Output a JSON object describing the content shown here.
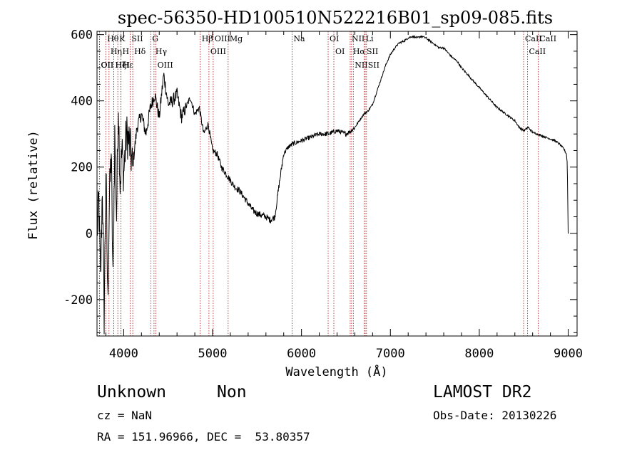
{
  "chart_data": {
    "type": "line",
    "title": "spec-56350-HD100510N522216B01_sp09-085.fits",
    "xlabel": "Wavelength (Å)",
    "ylabel": "Flux (relative)",
    "xlim": [
      3700,
      9100
    ],
    "ylim": [
      -310,
      610
    ],
    "xticks": [
      4000,
      5000,
      6000,
      7000,
      8000,
      9000
    ],
    "yticks": [
      -200,
      0,
      200,
      400,
      600
    ],
    "grid": false,
    "series": [
      {
        "x": [
          3700,
          3720,
          3740,
          3760,
          3780,
          3800,
          3820,
          3840,
          3860,
          3880,
          3900,
          3920,
          3940,
          3960,
          3980,
          4000,
          4030,
          4060,
          4100,
          4150,
          4200,
          4250,
          4300,
          4350,
          4400,
          4450,
          4500,
          4550,
          4600,
          4650,
          4700,
          4750,
          4800,
          4850,
          4900,
          4950,
          5000,
          5050,
          5100,
          5150,
          5200,
          5250,
          5300,
          5350,
          5400,
          5450,
          5500,
          5550,
          5600,
          5650,
          5700,
          5750,
          5800,
          5850,
          5900,
          5950,
          6000,
          6100,
          6200,
          6300,
          6400,
          6500,
          6560,
          6600,
          6650,
          6700,
          6750,
          6800,
          6850,
          6900,
          6950,
          7000,
          7050,
          7100,
          7150,
          7200,
          7250,
          7300,
          7350,
          7400,
          7450,
          7500,
          7550,
          7600,
          7650,
          7700,
          7750,
          7800,
          7850,
          7900,
          7950,
          8000,
          8050,
          8100,
          8150,
          8200,
          8250,
          8300,
          8350,
          8400,
          8450,
          8500,
          8550,
          8600,
          8650,
          8700,
          8750,
          8800,
          8850,
          8900,
          8950,
          8980,
          8990,
          9000
        ],
        "y": [
          0,
          100,
          -150,
          150,
          -250,
          200,
          -200,
          100,
          250,
          -150,
          300,
          50,
          400,
          150,
          250,
          180,
          300,
          280,
          200,
          320,
          360,
          300,
          380,
          420,
          350,
          480,
          390,
          400,
          420,
          350,
          380,
          410,
          360,
          380,
          300,
          330,
          250,
          240,
          200,
          180,
          160,
          140,
          130,
          110,
          90,
          70,
          60,
          55,
          50,
          40,
          50,
          150,
          240,
          260,
          270,
          275,
          280,
          290,
          300,
          300,
          310,
          300,
          310,
          320,
          340,
          360,
          370,
          390,
          430,
          470,
          510,
          540,
          560,
          575,
          580,
          590,
          595,
          590,
          595,
          590,
          580,
          570,
          560,
          560,
          545,
          530,
          520,
          500,
          485,
          470,
          455,
          440,
          425,
          410,
          395,
          380,
          370,
          360,
          350,
          340,
          320,
          310,
          320,
          305,
          300,
          295,
          290,
          285,
          280,
          270,
          255,
          240,
          210,
          0
        ]
      }
    ],
    "lines": [
      {
        "label": "Hθ",
        "wave": 3798
      },
      {
        "label": "Hη",
        "wave": 3835
      },
      {
        "label": "OII",
        "wave": 3727
      },
      {
        "label": "OII",
        "wave": 3729
      },
      {
        "label": "HeI",
        "wave": 3889
      },
      {
        "label": "Hζ",
        "wave": 3889
      },
      {
        "label": "K",
        "wave": 3934
      },
      {
        "label": "H",
        "wave": 3969
      },
      {
        "label": "Hε",
        "wave": 3970
      },
      {
        "label": "SII",
        "wave": 4072
      },
      {
        "label": "Hδ",
        "wave": 4102
      },
      {
        "label": "G",
        "wave": 4304
      },
      {
        "label": "Hγ",
        "wave": 4341
      },
      {
        "label": "OIII",
        "wave": 4363
      },
      {
        "label": "Hβ",
        "wave": 4861
      },
      {
        "label": "OIII",
        "wave": 4959
      },
      {
        "label": "OIII",
        "wave": 5007
      },
      {
        "label": "Mg",
        "wave": 5175
      },
      {
        "label": "Na",
        "wave": 5894
      },
      {
        "label": "OI",
        "wave": 6300
      },
      {
        "label": "OI",
        "wave": 6364
      },
      {
        "label": "NII",
        "wave": 6548
      },
      {
        "label": "Hα",
        "wave": 6563
      },
      {
        "label": "NII",
        "wave": 6583
      },
      {
        "label": "Li",
        "wave": 6707
      },
      {
        "label": "SII",
        "wave": 6717
      },
      {
        "label": "SII",
        "wave": 6731
      },
      {
        "label": "CaII",
        "wave": 8498
      },
      {
        "label": "CaII",
        "wave": 8542
      },
      {
        "label": "CaII",
        "wave": 8662
      }
    ]
  },
  "info": {
    "class": "Unknown",
    "subclass": "Non",
    "survey": "LAMOST DR2",
    "cz": "cz = NaN",
    "obs_date": "Obs-Date: 20130226",
    "coords": "RA = 151.96966, DEC =  53.80357"
  }
}
